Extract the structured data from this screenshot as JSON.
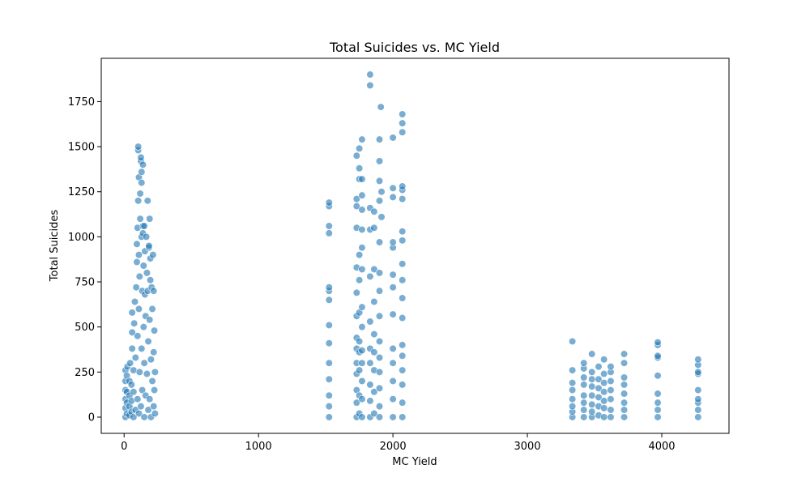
{
  "chart_data": {
    "type": "scatter",
    "title": "Total Suicides vs. MC Yield",
    "xlabel": "MC Yield",
    "ylabel": "Total Suicides",
    "xlim": [
      -170,
      4500
    ],
    "ylim": [
      -90,
      1990
    ],
    "xticks": [
      0,
      1000,
      2000,
      3000,
      4000
    ],
    "yticks": [
      0,
      250,
      500,
      750,
      1000,
      1250,
      1500,
      1750
    ],
    "grid": false,
    "legend": "none",
    "marker_color": "#1f77b4",
    "marker_opacity": 0.6,
    "series": [
      {
        "points": [
          [
            10,
            0
          ],
          [
            10,
            50
          ],
          [
            10,
            100
          ],
          [
            10,
            150
          ],
          [
            10,
            200
          ],
          [
            10,
            260
          ],
          [
            20,
            20
          ],
          [
            20,
            80
          ],
          [
            20,
            140
          ],
          [
            20,
            230
          ],
          [
            25,
            280
          ],
          [
            40,
            10
          ],
          [
            40,
            60
          ],
          [
            40,
            120
          ],
          [
            40,
            200
          ],
          [
            45,
            300
          ],
          [
            55,
            30
          ],
          [
            55,
            90
          ],
          [
            55,
            180
          ],
          [
            60,
            380
          ],
          [
            60,
            470
          ],
          [
            60,
            580
          ],
          [
            70,
            0
          ],
          [
            70,
            140
          ],
          [
            70,
            260
          ],
          [
            75,
            520
          ],
          [
            80,
            640
          ],
          [
            85,
            40
          ],
          [
            85,
            330
          ],
          [
            90,
            720
          ],
          [
            95,
            860
          ],
          [
            95,
            960
          ],
          [
            100,
            100
          ],
          [
            100,
            450
          ],
          [
            100,
            1050
          ],
          [
            105,
            1200
          ],
          [
            105,
            1480
          ],
          [
            105,
            1500
          ],
          [
            110,
            20
          ],
          [
            110,
            600
          ],
          [
            110,
            900
          ],
          [
            110,
            1330
          ],
          [
            115,
            250
          ],
          [
            115,
            780
          ],
          [
            120,
            1100
          ],
          [
            120,
            1240
          ],
          [
            125,
            60
          ],
          [
            125,
            1420
          ],
          [
            125,
            1440
          ],
          [
            130,
            380
          ],
          [
            130,
            1000
          ],
          [
            130,
            1300
          ],
          [
            130,
            1360
          ],
          [
            135,
            150
          ],
          [
            135,
            700
          ],
          [
            140,
            1020
          ],
          [
            140,
            1060
          ],
          [
            140,
            1400
          ],
          [
            145,
            500
          ],
          [
            145,
            840
          ],
          [
            150,
            0
          ],
          [
            150,
            300
          ],
          [
            150,
            1060
          ],
          [
            155,
            680
          ],
          [
            155,
            920
          ],
          [
            160,
            120
          ],
          [
            160,
            560
          ],
          [
            165,
            1000
          ],
          [
            170,
            240
          ],
          [
            170,
            800
          ],
          [
            175,
            1200
          ],
          [
            175,
            700
          ],
          [
            180,
            40
          ],
          [
            180,
            420
          ],
          [
            185,
            940
          ],
          [
            185,
            950
          ],
          [
            190,
            100
          ],
          [
            190,
            540
          ],
          [
            190,
            1100
          ],
          [
            195,
            880
          ],
          [
            195,
            760
          ],
          [
            200,
            0
          ],
          [
            200,
            320
          ],
          [
            205,
            720
          ],
          [
            210,
            200
          ],
          [
            210,
            600
          ],
          [
            215,
            900
          ],
          [
            220,
            60
          ],
          [
            220,
            360
          ],
          [
            220,
            700
          ],
          [
            225,
            150
          ],
          [
            225,
            480
          ],
          [
            230,
            20
          ],
          [
            230,
            250
          ]
        ]
      },
      {
        "points": [
          [
            1525,
            0
          ],
          [
            1525,
            60
          ],
          [
            1525,
            120
          ],
          [
            1525,
            210
          ],
          [
            1525,
            300
          ],
          [
            1525,
            410
          ],
          [
            1525,
            510
          ],
          [
            1525,
            650
          ],
          [
            1525,
            700
          ],
          [
            1525,
            720
          ],
          [
            1525,
            1020
          ],
          [
            1525,
            1060
          ],
          [
            1525,
            1170
          ],
          [
            1525,
            1190
          ],
          [
            1730,
            0
          ],
          [
            1730,
            80
          ],
          [
            1730,
            150
          ],
          [
            1730,
            240
          ],
          [
            1730,
            300
          ],
          [
            1730,
            380
          ],
          [
            1730,
            440
          ],
          [
            1730,
            560
          ],
          [
            1730,
            690
          ],
          [
            1730,
            830
          ],
          [
            1730,
            1050
          ],
          [
            1730,
            1170
          ],
          [
            1730,
            1210
          ],
          [
            1730,
            1450
          ],
          [
            1750,
            20
          ],
          [
            1750,
            120
          ],
          [
            1750,
            260
          ],
          [
            1750,
            360
          ],
          [
            1750,
            420
          ],
          [
            1750,
            580
          ],
          [
            1750,
            760
          ],
          [
            1750,
            900
          ],
          [
            1750,
            1320
          ],
          [
            1750,
            1380
          ],
          [
            1750,
            1490
          ],
          [
            1770,
            0
          ],
          [
            1770,
            100
          ],
          [
            1770,
            200
          ],
          [
            1770,
            300
          ],
          [
            1770,
            370
          ],
          [
            1770,
            500
          ],
          [
            1770,
            610
          ],
          [
            1770,
            820
          ],
          [
            1770,
            940
          ],
          [
            1770,
            1040
          ],
          [
            1770,
            1150
          ],
          [
            1770,
            1230
          ],
          [
            1770,
            1320
          ],
          [
            1770,
            1540
          ],
          [
            1830,
            0
          ],
          [
            1830,
            90
          ],
          [
            1830,
            180
          ],
          [
            1830,
            300
          ],
          [
            1830,
            380
          ],
          [
            1830,
            530
          ],
          [
            1830,
            780
          ],
          [
            1830,
            1040
          ],
          [
            1830,
            1160
          ],
          [
            1830,
            1840
          ],
          [
            1830,
            1900
          ],
          [
            1860,
            20
          ],
          [
            1860,
            140
          ],
          [
            1860,
            260
          ],
          [
            1860,
            360
          ],
          [
            1860,
            460
          ],
          [
            1860,
            640
          ],
          [
            1860,
            820
          ],
          [
            1860,
            1050
          ],
          [
            1860,
            1140
          ],
          [
            1900,
            0
          ],
          [
            1900,
            60
          ],
          [
            1900,
            160
          ],
          [
            1900,
            250
          ],
          [
            1900,
            330
          ],
          [
            1900,
            420
          ],
          [
            1900,
            560
          ],
          [
            1900,
            700
          ],
          [
            1900,
            800
          ],
          [
            1900,
            970
          ],
          [
            1900,
            1200
          ],
          [
            1900,
            1310
          ],
          [
            1900,
            1420
          ],
          [
            1900,
            1540
          ],
          [
            1910,
            1720
          ],
          [
            1915,
            1110
          ],
          [
            1915,
            1250
          ],
          [
            2000,
            0
          ],
          [
            2000,
            100
          ],
          [
            2000,
            200
          ],
          [
            2000,
            300
          ],
          [
            2000,
            380
          ],
          [
            2000,
            570
          ],
          [
            2000,
            720
          ],
          [
            2000,
            790
          ],
          [
            2000,
            940
          ],
          [
            2000,
            970
          ],
          [
            2000,
            1220
          ],
          [
            2000,
            1270
          ],
          [
            2000,
            1550
          ],
          [
            2070,
            0
          ],
          [
            2070,
            80
          ],
          [
            2070,
            180
          ],
          [
            2070,
            260
          ],
          [
            2070,
            340
          ],
          [
            2070,
            400
          ],
          [
            2070,
            550
          ],
          [
            2070,
            660
          ],
          [
            2070,
            760
          ],
          [
            2070,
            850
          ],
          [
            2070,
            980
          ],
          [
            2070,
            1030
          ],
          [
            2070,
            1210
          ],
          [
            2070,
            1260
          ],
          [
            2070,
            1280
          ],
          [
            2070,
            1580
          ],
          [
            2070,
            1630
          ],
          [
            2070,
            1680
          ]
        ]
      },
      {
        "points": [
          [
            3335,
            0
          ],
          [
            3335,
            30
          ],
          [
            3335,
            60
          ],
          [
            3335,
            100
          ],
          [
            3335,
            150
          ],
          [
            3335,
            190
          ],
          [
            3335,
            260
          ],
          [
            3335,
            420
          ],
          [
            3420,
            0
          ],
          [
            3420,
            40
          ],
          [
            3420,
            80
          ],
          [
            3420,
            120
          ],
          [
            3420,
            180
          ],
          [
            3420,
            220
          ],
          [
            3420,
            270
          ],
          [
            3420,
            300
          ],
          [
            3480,
            0
          ],
          [
            3480,
            30
          ],
          [
            3480,
            70
          ],
          [
            3480,
            120
          ],
          [
            3480,
            170
          ],
          [
            3480,
            210
          ],
          [
            3480,
            250
          ],
          [
            3480,
            350
          ],
          [
            3530,
            10
          ],
          [
            3530,
            60
          ],
          [
            3530,
            110
          ],
          [
            3530,
            160
          ],
          [
            3530,
            210
          ],
          [
            3530,
            280
          ],
          [
            3570,
            0
          ],
          [
            3570,
            50
          ],
          [
            3570,
            90
          ],
          [
            3570,
            140
          ],
          [
            3570,
            190
          ],
          [
            3570,
            240
          ],
          [
            3570,
            320
          ],
          [
            3620,
            0
          ],
          [
            3620,
            40
          ],
          [
            3620,
            100
          ],
          [
            3620,
            150
          ],
          [
            3620,
            200
          ],
          [
            3620,
            250
          ],
          [
            3620,
            280
          ],
          [
            3720,
            0
          ],
          [
            3720,
            40
          ],
          [
            3720,
            80
          ],
          [
            3720,
            130
          ],
          [
            3720,
            180
          ],
          [
            3720,
            220
          ],
          [
            3720,
            300
          ],
          [
            3720,
            350
          ],
          [
            3970,
            0
          ],
          [
            3970,
            40
          ],
          [
            3970,
            80
          ],
          [
            3970,
            130
          ],
          [
            3970,
            230
          ],
          [
            3970,
            330
          ],
          [
            3970,
            340
          ],
          [
            3970,
            400
          ],
          [
            3970,
            415
          ],
          [
            4270,
            0
          ],
          [
            4270,
            40
          ],
          [
            4270,
            80
          ],
          [
            4270,
            100
          ],
          [
            4270,
            150
          ],
          [
            4270,
            240
          ],
          [
            4270,
            250
          ],
          [
            4270,
            290
          ],
          [
            4270,
            320
          ]
        ]
      }
    ]
  }
}
